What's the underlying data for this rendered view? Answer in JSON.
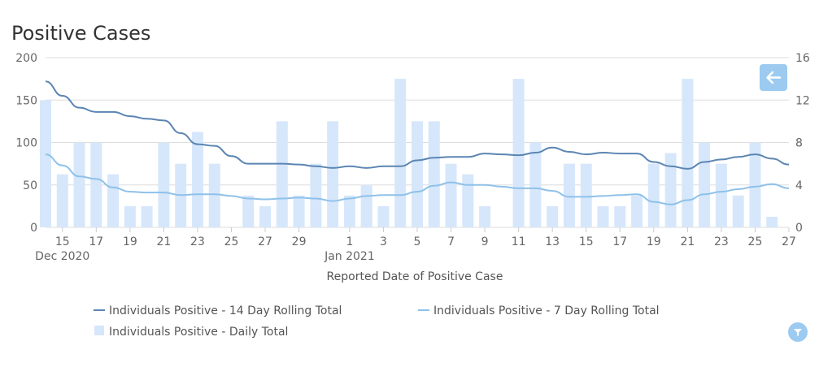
{
  "title": "Positive Cases",
  "colors": {
    "bars": "#d6e7fb",
    "line14": "#5b85b2",
    "line7": "#8ec1e9",
    "grid": "#dddddd",
    "button": "#9ccaf0"
  },
  "icons": {
    "back": "arrow-left-icon",
    "filter": "filter-icon"
  },
  "chart_data": {
    "type": "bar+line",
    "title": "Positive Cases",
    "xlabel": "Reported Date of Positive Case",
    "ylabel_left": "",
    "ylabel_right": "",
    "ylim_left": [
      0,
      200
    ],
    "ylim_right": [
      0,
      16
    ],
    "yticks_left": [
      "0",
      "50",
      "100",
      "150",
      "200"
    ],
    "yticks_right": [
      "0",
      "4",
      "8",
      "12",
      "16"
    ],
    "x_tick_labels": [
      "15",
      "17",
      "19",
      "21",
      "23",
      "25",
      "27",
      "29",
      "1",
      "3",
      "5",
      "7",
      "9",
      "11",
      "13",
      "15",
      "17",
      "19",
      "21",
      "23",
      "25",
      "27"
    ],
    "x_tick_days": [
      1,
      3,
      5,
      7,
      9,
      11,
      13,
      15,
      18,
      20,
      22,
      24,
      26,
      28,
      30,
      32,
      34,
      36,
      38,
      40,
      42,
      44
    ],
    "x_group_labels": [
      {
        "label": "Dec 2020",
        "day": 1
      },
      {
        "label": "Jan 2021",
        "day": 18
      }
    ],
    "dates": [
      "Dec 14",
      "Dec 15",
      "Dec 16",
      "Dec 17",
      "Dec 18",
      "Dec 19",
      "Dec 20",
      "Dec 21",
      "Dec 22",
      "Dec 23",
      "Dec 24",
      "Dec 25",
      "Dec 26",
      "Dec 27",
      "Dec 28",
      "Dec 29",
      "Dec 30",
      "Dec 31",
      "Jan 1",
      "Jan 2",
      "Jan 3",
      "Jan 4",
      "Jan 5",
      "Jan 6",
      "Jan 7",
      "Jan 8",
      "Jan 9",
      "Jan 10",
      "Jan 11",
      "Jan 12",
      "Jan 13",
      "Jan 14",
      "Jan 15",
      "Jan 16",
      "Jan 17",
      "Jan 18",
      "Jan 19",
      "Jan 20",
      "Jan 21",
      "Jan 22",
      "Jan 23",
      "Jan 24",
      "Jan 25",
      "Jan 26",
      "Jan 27"
    ],
    "series": [
      {
        "name": "Individuals Positive - Daily Total",
        "type": "bar",
        "axis": "right",
        "values": [
          12,
          5,
          8,
          8,
          5,
          2,
          2,
          8,
          6,
          9,
          6,
          0,
          3,
          2,
          10,
          3,
          6,
          10,
          3,
          4,
          2,
          14,
          10,
          10,
          6,
          5,
          2,
          0,
          14,
          8,
          2,
          6,
          6,
          2,
          2,
          3,
          6,
          7,
          14,
          8,
          6,
          3,
          8,
          1,
          0
        ]
      },
      {
        "name": "Individuals Positive - 14 Day Rolling Total",
        "type": "line",
        "axis": "left",
        "values": [
          172,
          155,
          141,
          136,
          136,
          131,
          128,
          126,
          111,
          98,
          96,
          84,
          75,
          75,
          75,
          74,
          72,
          70,
          72,
          70,
          72,
          72,
          79,
          82,
          83,
          83,
          87,
          86,
          85,
          88,
          94,
          89,
          86,
          88,
          87,
          87,
          77,
          72,
          69,
          77,
          80,
          83,
          86,
          81,
          74
        ]
      },
      {
        "name": "Individuals Positive - 7 Day Rolling Total",
        "type": "line",
        "axis": "left",
        "values": [
          86,
          73,
          60,
          57,
          47,
          42,
          41,
          41,
          38,
          39,
          39,
          37,
          34,
          33,
          34,
          35,
          34,
          31,
          34,
          37,
          38,
          38,
          42,
          49,
          53,
          50,
          50,
          48,
          46,
          46,
          43,
          36,
          36,
          37,
          38,
          39,
          30,
          27,
          32,
          39,
          42,
          45,
          48,
          51,
          46
        ]
      }
    ],
    "legend": [
      "Individuals Positive - 14 Day Rolling Total",
      "Individuals Positive - 7 Day Rolling Total",
      "Individuals Positive - Daily Total"
    ]
  }
}
